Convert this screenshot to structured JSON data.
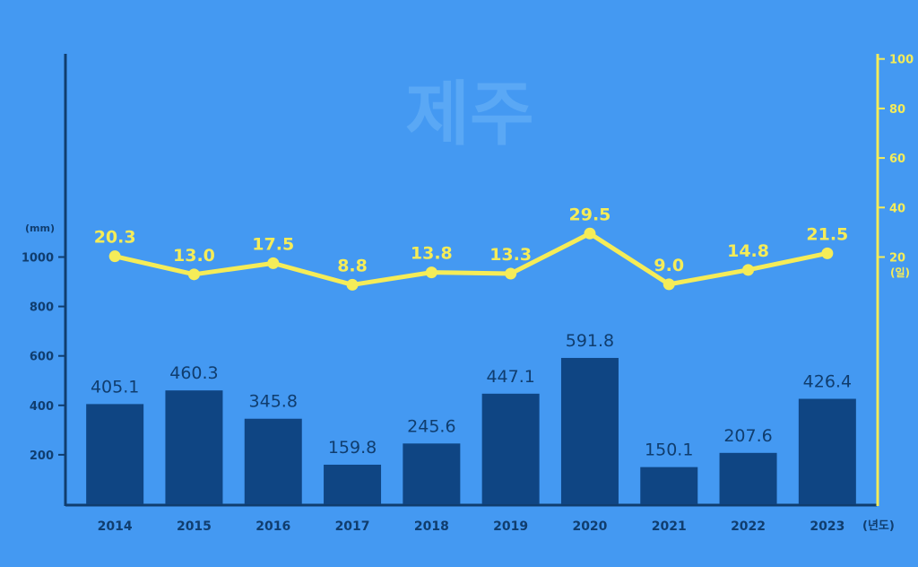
{
  "chart_data": {
    "type": "bar",
    "title": "제주",
    "categories": [
      "2014",
      "2015",
      "2016",
      "2017",
      "2018",
      "2019",
      "2020",
      "2021",
      "2022",
      "2023"
    ],
    "x_unit": "(년도)",
    "series": [
      {
        "type": "bar",
        "axis": "left",
        "values": [
          405.1,
          460.3,
          345.8,
          159.8,
          245.6,
          447.1,
          591.8,
          150.1,
          207.6,
          426.4
        ],
        "labels": [
          "405.1",
          "460.3",
          "345.8",
          "159.8",
          "245.6",
          "447.1",
          "591.8",
          "150.1",
          "207.6",
          "426.4"
        ],
        "color": "#0f4583"
      },
      {
        "type": "line",
        "axis": "right",
        "values": [
          20.3,
          13.0,
          17.5,
          8.8,
          13.8,
          13.3,
          29.5,
          9.0,
          14.8,
          21.5
        ],
        "labels": [
          "20.3",
          "13.0",
          "17.5",
          "8.8",
          "13.8",
          "13.3",
          "29.5",
          "9.0",
          "14.8",
          "21.5"
        ],
        "color": "#f5ec58"
      }
    ],
    "left_axis": {
      "unit": "(mm)",
      "ticks": [
        "200",
        "400",
        "600",
        "800",
        "1000"
      ],
      "tick_values": [
        200,
        400,
        600,
        800,
        1000
      ],
      "color": "#103d6e"
    },
    "right_axis": {
      "unit": "(일)",
      "ticks": [
        "20",
        "40",
        "60",
        "80",
        "100"
      ],
      "tick_values": [
        20,
        40,
        60,
        80,
        100
      ],
      "color": "#f5ec58"
    },
    "grid": false,
    "legend": "none"
  }
}
